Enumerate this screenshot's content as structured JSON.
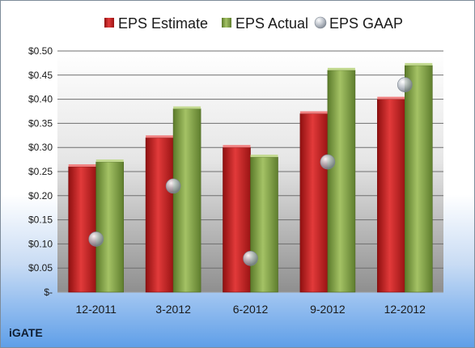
{
  "chart_data": {
    "type": "bar",
    "company": "iGATE",
    "categories": [
      "12-2011",
      "3-2012",
      "6-2012",
      "9-2012",
      "12-2012"
    ],
    "series": [
      {
        "name": "EPS Estimate",
        "kind": "bar",
        "color": "#d92a2a",
        "values": [
          0.26,
          0.32,
          0.3,
          0.37,
          0.4
        ]
      },
      {
        "name": "EPS Actual",
        "kind": "bar",
        "color": "#8aa84e",
        "values": [
          0.27,
          0.38,
          0.28,
          0.46,
          0.47
        ]
      },
      {
        "name": "EPS GAAP",
        "kind": "marker",
        "color": "#b0b8c2",
        "values": [
          0.11,
          0.22,
          0.07,
          0.27,
          0.43
        ]
      }
    ],
    "ylim": [
      0,
      0.5
    ],
    "yticks": [
      0,
      0.05,
      0.1,
      0.15,
      0.2,
      0.25,
      0.3,
      0.35,
      0.4,
      0.45,
      0.5
    ],
    "ytick_labels": [
      "$-",
      "$0.05",
      "$0.10",
      "$0.15",
      "$0.20",
      "$0.25",
      "$0.30",
      "$0.35",
      "$0.40",
      "$0.45",
      "$0.50"
    ],
    "grid": true,
    "legend_position": "top"
  }
}
